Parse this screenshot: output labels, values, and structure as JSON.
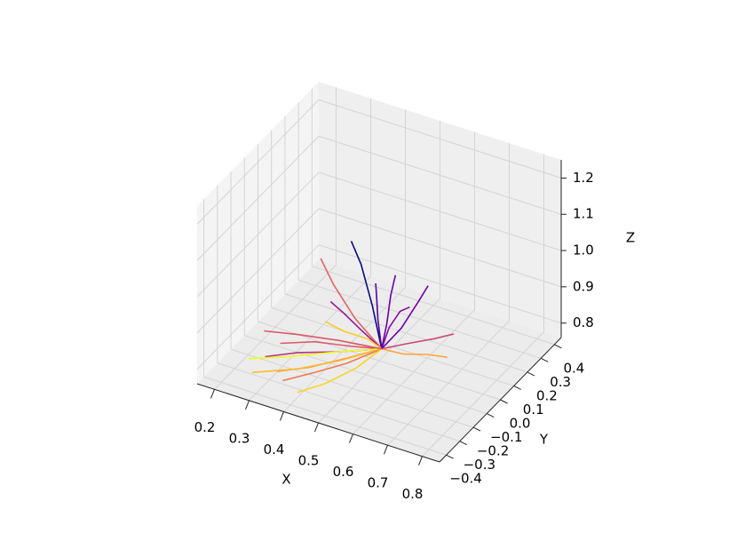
{
  "chart_data": {
    "type": "line3d",
    "xlabel": "X",
    "ylabel": "Y",
    "zlabel": "Z",
    "xlim": [
      0.15,
      0.85
    ],
    "ylim": [
      -0.45,
      0.45
    ],
    "zlim": [
      0.76,
      1.25
    ],
    "xticks": [
      0.2,
      0.3,
      0.4,
      0.5,
      0.6,
      0.7,
      0.8
    ],
    "yticks": [
      {
        "value": -0.4,
        "label": "−0.4"
      },
      {
        "value": -0.3,
        "label": "−0.3"
      },
      {
        "value": -0.2,
        "label": "−0.2"
      },
      {
        "value": -0.1,
        "label": "−0.1"
      },
      {
        "value": 0,
        "label": "0.0"
      },
      0.1,
      0.2,
      0.3,
      0.4
    ],
    "zticks": [
      0.8,
      0.9,
      {
        "value": 1,
        "label": "1.0"
      },
      1.1,
      1.2
    ],
    "grid": true,
    "series": [
      {
        "color": "#0d0887",
        "x": [
          0.55,
          0.5,
          0.44,
          0.4
        ],
        "y": [
          -0.11,
          -0.05,
          0.02,
          0.05
        ],
        "z": [
          0.85,
          0.93,
          1.0,
          1.04
        ]
      },
      {
        "color": "#5302a3",
        "x": [
          0.55,
          0.52,
          0.5,
          0.49
        ],
        "y": [
          -0.11,
          -0.06,
          -0.02,
          0.0
        ],
        "z": [
          0.85,
          0.9,
          0.95,
          0.97
        ]
      },
      {
        "color": "#8b0aa5",
        "x": [
          0.55,
          0.56,
          0.58,
          0.6
        ],
        "y": [
          -0.11,
          -0.08,
          -0.05,
          -0.03
        ],
        "z": [
          0.85,
          0.9,
          0.94,
          0.95
        ]
      },
      {
        "color": "#b83289",
        "x": [
          0.55,
          0.45,
          0.35,
          0.28
        ],
        "y": [
          -0.11,
          -0.16,
          -0.22,
          -0.28
        ],
        "z": [
          0.85,
          0.83,
          0.82,
          0.81
        ]
      },
      {
        "color": "#db5c68",
        "x": [
          0.55,
          0.47,
          0.38,
          0.3
        ],
        "y": [
          -0.11,
          -0.13,
          -0.17,
          -0.22
        ],
        "z": [
          0.85,
          0.84,
          0.84,
          0.83
        ]
      },
      {
        "color": "#f48849",
        "x": [
          0.55,
          0.48,
          0.4,
          0.33
        ],
        "y": [
          -0.11,
          -0.18,
          -0.26,
          -0.32
        ],
        "z": [
          0.85,
          0.83,
          0.81,
          0.8
        ]
      },
      {
        "color": "#febc2a",
        "x": [
          0.55,
          0.46,
          0.37,
          0.27
        ],
        "y": [
          -0.11,
          -0.19,
          -0.27,
          -0.35
        ],
        "z": [
          0.85,
          0.82,
          0.8,
          0.79
        ]
      },
      {
        "color": "#f0f921",
        "x": [
          0.55,
          0.44,
          0.33,
          0.24
        ],
        "y": [
          -0.11,
          -0.17,
          -0.24,
          -0.3
        ],
        "z": [
          0.85,
          0.83,
          0.81,
          0.8
        ]
      },
      {
        "color": "#6a00a8",
        "x": [
          0.55,
          0.53,
          0.51,
          0.5
        ],
        "y": [
          -0.11,
          -0.02,
          0.06,
          0.12
        ],
        "z": [
          0.85,
          0.88,
          0.92,
          0.95
        ]
      },
      {
        "color": "#cc4778",
        "x": [
          0.55,
          0.6,
          0.66,
          0.7
        ],
        "y": [
          -0.11,
          -0.06,
          0.0,
          0.04
        ],
        "z": [
          0.85,
          0.86,
          0.87,
          0.88
        ]
      },
      {
        "color": "#fca636",
        "x": [
          0.55,
          0.61,
          0.67,
          0.72
        ],
        "y": [
          -0.11,
          -0.1,
          -0.08,
          -0.06
        ],
        "z": [
          0.85,
          0.85,
          0.86,
          0.86
        ]
      },
      {
        "color": "#e16462",
        "x": [
          0.55,
          0.45,
          0.36,
          0.3
        ],
        "y": [
          -0.11,
          -0.05,
          0.02,
          0.08
        ],
        "z": [
          0.85,
          0.88,
          0.92,
          0.95
        ]
      },
      {
        "color": "#9c179e",
        "x": [
          0.55,
          0.5,
          0.46,
          0.43
        ],
        "y": [
          -0.11,
          -0.14,
          -0.16,
          -0.18
        ],
        "z": [
          0.85,
          0.9,
          0.94,
          0.97
        ]
      },
      {
        "color": "#fdca26",
        "x": [
          0.55,
          0.5,
          0.42,
          0.36
        ],
        "y": [
          -0.11,
          -0.08,
          -0.06,
          -0.04
        ],
        "z": [
          0.85,
          0.85,
          0.84,
          0.84
        ]
      },
      {
        "color": "#ed7953",
        "x": [
          0.55,
          0.49,
          0.43,
          0.37
        ],
        "y": [
          -0.11,
          -0.21,
          -0.3,
          -0.38
        ],
        "z": [
          0.85,
          0.83,
          0.82,
          0.81
        ]
      },
      {
        "color": "#7201a8",
        "x": [
          0.55,
          0.58,
          0.6,
          0.61
        ],
        "y": [
          -0.11,
          -0.04,
          0.03,
          0.08
        ],
        "z": [
          0.85,
          0.89,
          0.94,
          0.97
        ]
      },
      {
        "color": "#fbd524",
        "x": [
          0.55,
          0.52,
          0.47,
          0.42
        ],
        "y": [
          -0.11,
          -0.22,
          -0.32,
          -0.4
        ],
        "z": [
          0.85,
          0.83,
          0.81,
          0.8
        ]
      },
      {
        "color": "#d8576b",
        "x": [
          0.55,
          0.43,
          0.32,
          0.23
        ],
        "y": [
          -0.11,
          -0.12,
          -0.14,
          -0.16
        ],
        "z": [
          0.85,
          0.84,
          0.83,
          0.82
        ]
      }
    ]
  }
}
